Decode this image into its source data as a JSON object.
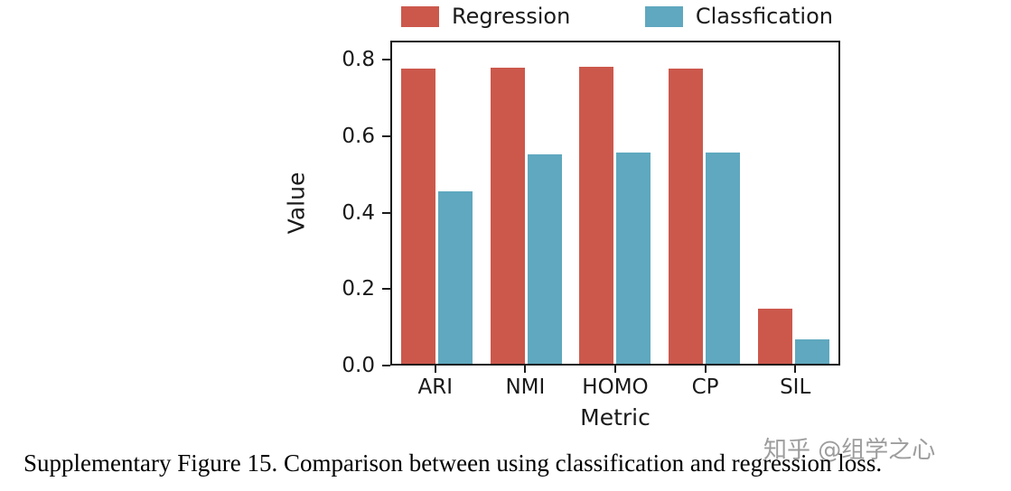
{
  "figure": {
    "caption": "Supplementary Figure 15. Comparison between using classification and regression loss.",
    "watermark": "知乎 @组学之心"
  },
  "chart_data": {
    "type": "bar",
    "title": "",
    "xlabel": "Metric",
    "ylabel": "Value",
    "categories": [
      "ARI",
      "NMI",
      "HOMO",
      "CP",
      "SIL"
    ],
    "series": [
      {
        "name": "Regression",
        "color": "#cc584c",
        "values": [
          0.78,
          0.782,
          0.786,
          0.78,
          0.145
        ]
      },
      {
        "name": "Classfication",
        "color": "#5fa8bf",
        "values": [
          0.455,
          0.555,
          0.558,
          0.558,
          0.065
        ]
      }
    ],
    "ylim": [
      0,
      0.85
    ],
    "yticks": [
      0.0,
      0.2,
      0.4,
      0.6,
      0.8
    ],
    "legend_position": "top",
    "grid": false
  }
}
